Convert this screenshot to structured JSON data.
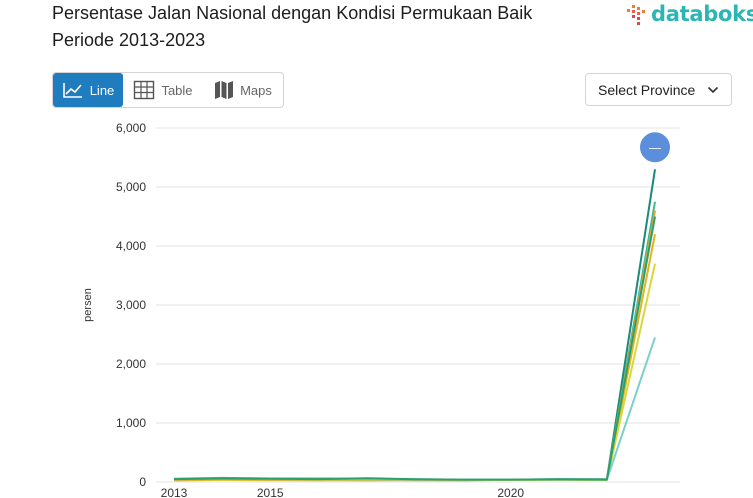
{
  "header": {
    "title": "Persentase Jalan Nasional dengan Kondisi Permukaan Baik Periode 2013-2023",
    "logo_text": "databoks"
  },
  "tabs": [
    {
      "label": "Line",
      "icon": "line-chart-icon",
      "active": true
    },
    {
      "label": "Table",
      "icon": "table-icon",
      "active": false
    },
    {
      "label": "Maps",
      "icon": "map-icon",
      "active": false
    }
  ],
  "province_select": {
    "label": "Select Province",
    "icon": "chevron-down-icon"
  },
  "colors": {
    "accent": "#1f7cbf",
    "logo": "#2cb5b5",
    "series": [
      "#1a8a7a",
      "#3fb89a",
      "#e8b21c",
      "#d6d93a",
      "#f0a020",
      "#7dd0c8",
      "#2aa070"
    ],
    "marker": "#5b8fdc"
  },
  "chart_data": {
    "type": "line",
    "ylabel": "persen",
    "ylim": [
      0,
      6000
    ],
    "yticks": [
      "0",
      "1,000",
      "2,000",
      "3,000",
      "4,000",
      "5,000",
      "6,000"
    ],
    "xticks": [
      "2013",
      "2015",
      "2020"
    ],
    "x": [
      2013,
      2014,
      2015,
      2016,
      2017,
      2018,
      2019,
      2020,
      2021,
      2022,
      2023
    ],
    "grid": true,
    "series": [
      {
        "values": [
          40,
          65,
          55,
          35,
          30,
          35,
          30,
          40,
          45,
          45,
          5300
        ]
      },
      {
        "values": [
          55,
          70,
          60,
          60,
          55,
          45,
          40,
          40,
          40,
          40,
          4750
        ]
      },
      {
        "values": [
          30,
          40,
          35,
          30,
          35,
          30,
          30,
          35,
          35,
          35,
          4200
        ]
      },
      {
        "values": [
          25,
          35,
          30,
          30,
          30,
          30,
          30,
          35,
          35,
          35,
          3700
        ]
      },
      {
        "values": [
          35,
          45,
          40,
          40,
          40,
          35,
          35,
          40,
          40,
          40,
          4600
        ]
      },
      {
        "values": [
          45,
          55,
          50,
          45,
          45,
          40,
          40,
          40,
          40,
          40,
          2450
        ]
      },
      {
        "values": [
          50,
          60,
          55,
          50,
          65,
          45,
          40,
          40,
          45,
          40,
          4500
        ]
      }
    ],
    "marker_glyph": "—"
  }
}
